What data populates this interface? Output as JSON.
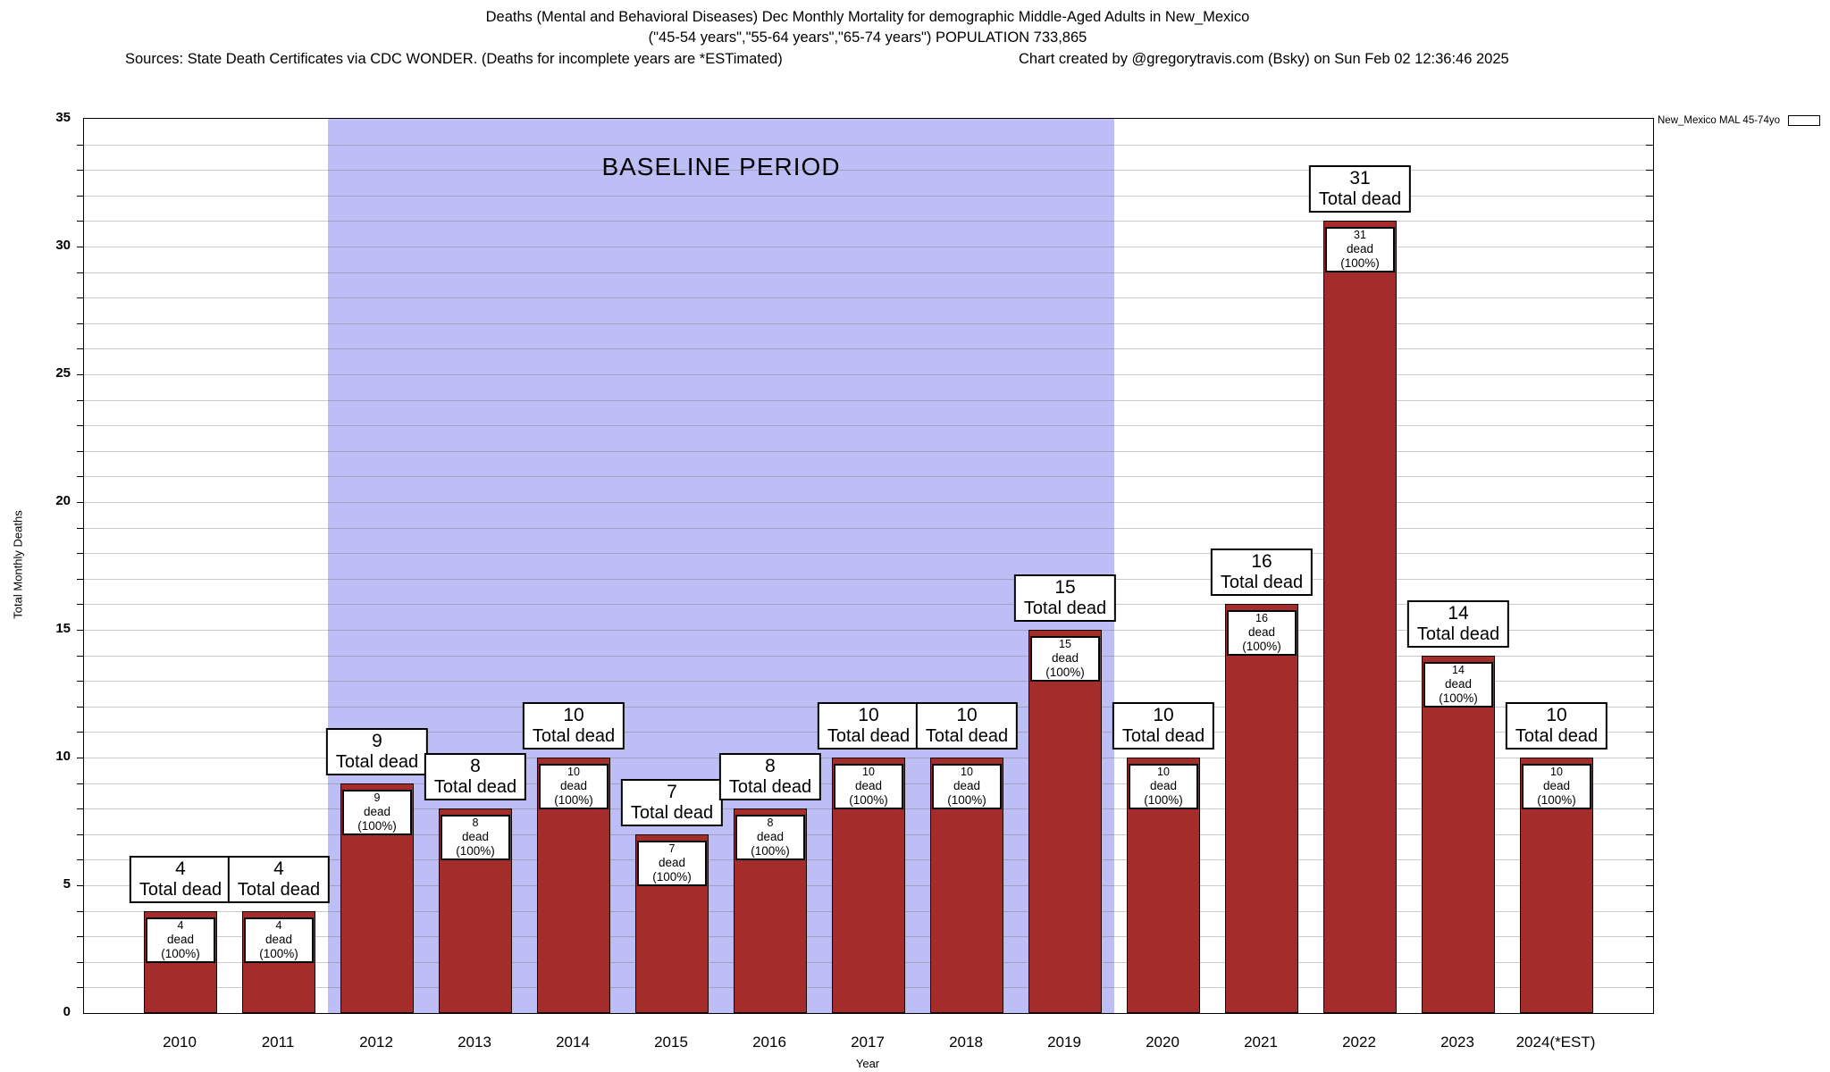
{
  "header": {
    "title_line1": "Deaths (Mental and Behavioral Diseases) Dec Monthly Mortality for demographic Middle-Aged Adults in New_Mexico",
    "title_line2": "(\"45-54 years\",\"55-64 years\",\"65-74 years\") POPULATION 733,865",
    "sources_line": "Sources: State Death Certificates via CDC WONDER. (Deaths for incomplete years are *ESTimated)",
    "credit_line": "Chart created by @gregorytravis.com (Bsky) on Sun Feb 02 12:36:46 2025"
  },
  "legend": {
    "label": "New_Mexico MAL 45-74yo",
    "swatch_color": "#A42C2A"
  },
  "chart_data": {
    "type": "bar",
    "title": "Deaths (Mental and Behavioral Diseases) Dec Monthly Mortality for demographic Middle-Aged Adults in New_Mexico",
    "xlabel": "Year",
    "ylabel": "Total Monthly Deaths",
    "ylim": [
      0,
      35
    ],
    "ytick_step": 5,
    "minor_grid_step": 1,
    "grid": true,
    "legend_position": "top-right",
    "categories": [
      "2010",
      "2011",
      "2012",
      "2013",
      "2014",
      "2015",
      "2016",
      "2017",
      "2018",
      "2019",
      "2020",
      "2021",
      "2022",
      "2023",
      "2024(*EST)"
    ],
    "values": [
      4,
      4,
      9,
      8,
      10,
      7,
      8,
      10,
      10,
      15,
      10,
      16,
      31,
      14,
      10
    ],
    "bar_color": "#A42C2A",
    "bar_top_label_suffix": "Total dead",
    "bar_inner_label_suffix": "dead (100%)",
    "baseline_region": {
      "label": "BASELINE PERIOD",
      "start_category": "2012",
      "end_category": "2019",
      "color": "#BEBEF6"
    }
  }
}
